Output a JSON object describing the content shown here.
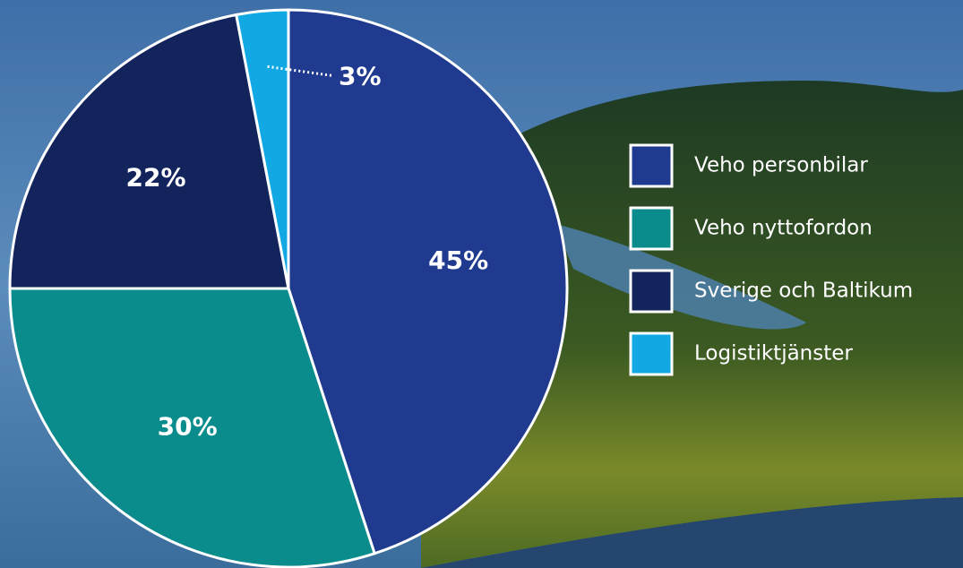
{
  "chart_data": {
    "type": "pie",
    "categories": [
      "Veho personbilar",
      "Veho nyttofordon",
      "Sverige och Baltikum",
      "Logistiktjänster"
    ],
    "values": [
      45,
      30,
      22,
      3
    ],
    "value_labels": [
      "45%",
      "30%",
      "22%",
      "3%"
    ],
    "colors": [
      "#1f3a8e",
      "#0b8c8c",
      "#13245c",
      "#12a8e4"
    ],
    "legend": "right"
  }
}
